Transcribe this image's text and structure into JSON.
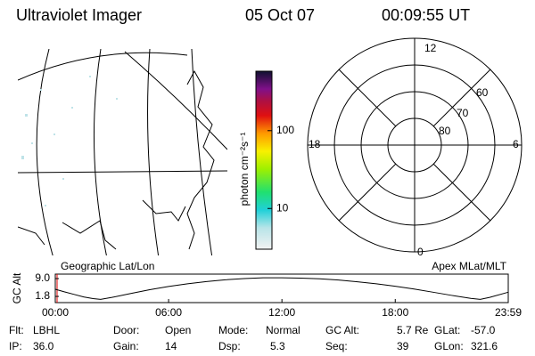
{
  "header": {
    "title": "Ultraviolet Imager",
    "date": "05 Oct 07",
    "time": "00:09:55 UT"
  },
  "map": {
    "label": "Geographic Lat/Lon"
  },
  "colorbar": {
    "label": "photon cm⁻²s⁻¹",
    "scale": "log",
    "lim": [
      3,
      580
    ],
    "ticks": [
      100,
      10
    ]
  },
  "polar": {
    "label": "Apex MLat/MLT",
    "mlt_labels": [
      "12",
      "18",
      "6",
      "0"
    ],
    "lat_labels": [
      "60",
      "70",
      "80"
    ]
  },
  "altitude_plot": {
    "ylabel": "GC Alt",
    "color": "#000000",
    "ylim": [
      -0.7,
      10.8
    ],
    "yticks": [
      {
        "value": 9,
        "label": "9.0"
      },
      {
        "value": 1.8,
        "label": "1.8"
      }
    ],
    "xlim": [
      0,
      23.983
    ],
    "xticks": [
      {
        "value": 0,
        "label": "00:00"
      },
      {
        "value": 6,
        "label": "06:00"
      },
      {
        "value": 12,
        "label": "12:00"
      },
      {
        "value": 18,
        "label": "18:00"
      },
      {
        "value": 23.983,
        "label": "23:59"
      }
    ],
    "x": [
      0,
      0.5,
      1,
      1.5,
      2,
      2.4,
      3,
      4,
      5,
      6,
      7,
      8,
      9,
      10,
      11,
      12,
      13,
      14,
      15,
      16,
      17,
      18,
      19,
      20,
      21,
      22,
      22.5,
      23,
      23.983
    ],
    "values": [
      4.7,
      3.6,
      2.6,
      1.6,
      0.9,
      0.6,
      1.4,
      3.0,
      4.5,
      5.8,
      6.9,
      7.8,
      8.5,
      9.0,
      9.3,
      9.3,
      9.2,
      8.9,
      8.4,
      7.7,
      6.9,
      5.9,
      4.8,
      3.5,
      2.2,
      1.0,
      0.6,
      1.4,
      3.5
    ]
  },
  "status": [
    [
      {
        "label": "Flt:",
        "value": "LBHL"
      },
      {
        "label": "Door:",
        "value": "Open"
      },
      {
        "label": "Mode:",
        "value": "Normal"
      },
      {
        "label": "GC Alt:",
        "value": "5.7 Re"
      },
      {
        "label": "GLat:",
        "value": "-57.0"
      }
    ],
    [
      {
        "label": "IP:",
        "value": "36.0"
      },
      {
        "label": "Gain:",
        "value": "14"
      },
      {
        "label": "Dsp:",
        "value": "5.3"
      },
      {
        "label": "Seq:",
        "value": "39"
      },
      {
        "label": "GLon:",
        "value": "321.6"
      }
    ]
  ]
}
